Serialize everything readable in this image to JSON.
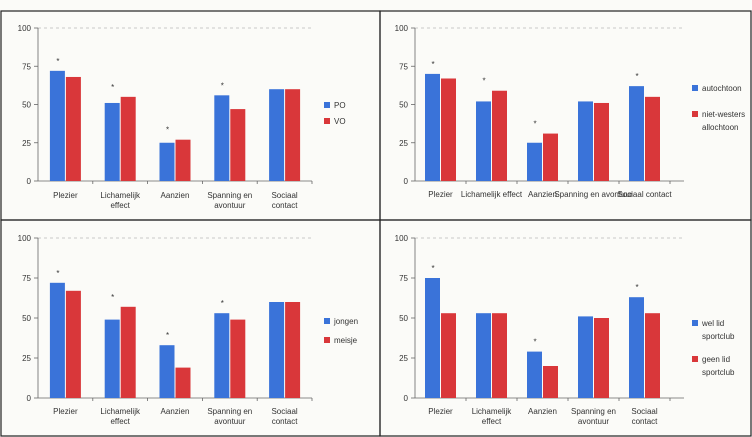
{
  "colors": {
    "blue": "#3a73d9",
    "red": "#d9373a",
    "grid": "#b8b8b8",
    "axis": "#666666",
    "border": "#222222"
  },
  "chart_data": [
    {
      "type": "bar",
      "categories": [
        [
          "Plezier"
        ],
        [
          "Lichamelijk",
          "effect"
        ],
        [
          "Aanzien"
        ],
        [
          "Spanning en",
          "avontuur"
        ],
        [
          "Sociaal",
          "contact"
        ]
      ],
      "series": [
        {
          "name": [
            "PO"
          ],
          "values": [
            72,
            51,
            25,
            56,
            60
          ]
        },
        {
          "name": [
            "VO"
          ],
          "values": [
            68,
            55,
            27,
            47,
            60
          ]
        }
      ],
      "significance": [
        "*",
        "*",
        "*",
        "*",
        ""
      ],
      "yticks": [
        0,
        25,
        50,
        75,
        100
      ],
      "ylim": [
        0,
        100
      ],
      "grid": "dashed at 100",
      "legend": "right"
    },
    {
      "type": "bar",
      "categories": [
        [
          "Plezier"
        ],
        [
          "Lichamelijk effect"
        ],
        [
          "Aanzien"
        ],
        [
          "Spanning en avontuur"
        ],
        [
          "Sociaal contact"
        ]
      ],
      "series": [
        {
          "name": [
            "autochtoon"
          ],
          "values": [
            70,
            52,
            25,
            52,
            62
          ]
        },
        {
          "name": [
            "niet-westers",
            "allochtoon"
          ],
          "values": [
            67,
            59,
            31,
            51,
            55
          ]
        }
      ],
      "significance": [
        "*",
        "*",
        "*",
        "",
        "*"
      ],
      "yticks": [
        0,
        25,
        50,
        75,
        100
      ],
      "ylim": [
        0,
        100
      ],
      "grid": "dashed at 100",
      "legend": "right"
    },
    {
      "type": "bar",
      "categories": [
        [
          "Plezier"
        ],
        [
          "Lichamelijk",
          "effect"
        ],
        [
          "Aanzien"
        ],
        [
          "Spanning en",
          "avontuur"
        ],
        [
          "Sociaal",
          "contact"
        ]
      ],
      "series": [
        {
          "name": [
            "jongen"
          ],
          "values": [
            72,
            49,
            33,
            53,
            60
          ]
        },
        {
          "name": [
            "meisje"
          ],
          "values": [
            67,
            57,
            19,
            49,
            60
          ]
        }
      ],
      "significance": [
        "*",
        "*",
        "*",
        "*",
        ""
      ],
      "yticks": [
        0,
        25,
        50,
        75,
        100
      ],
      "ylim": [
        0,
        100
      ],
      "grid": "dashed at 100",
      "legend": "right"
    },
    {
      "type": "bar",
      "categories": [
        [
          "Plezier"
        ],
        [
          "Lichamelijk",
          "effect"
        ],
        [
          "Aanzien"
        ],
        [
          "Spanning en",
          "avontuur"
        ],
        [
          "Sociaal",
          "contact"
        ]
      ],
      "series": [
        {
          "name": [
            "wel lid",
            "sportclub"
          ],
          "values": [
            75,
            53,
            29,
            51,
            63
          ]
        },
        {
          "name": [
            "geen lid",
            "sportclub"
          ],
          "values": [
            53,
            53,
            20,
            50,
            53
          ]
        }
      ],
      "significance": [
        "*",
        "",
        "*",
        "",
        "*"
      ],
      "yticks": [
        0,
        25,
        50,
        75,
        100
      ],
      "ylim": [
        0,
        100
      ],
      "grid": "dashed at 100",
      "legend": "right"
    }
  ]
}
